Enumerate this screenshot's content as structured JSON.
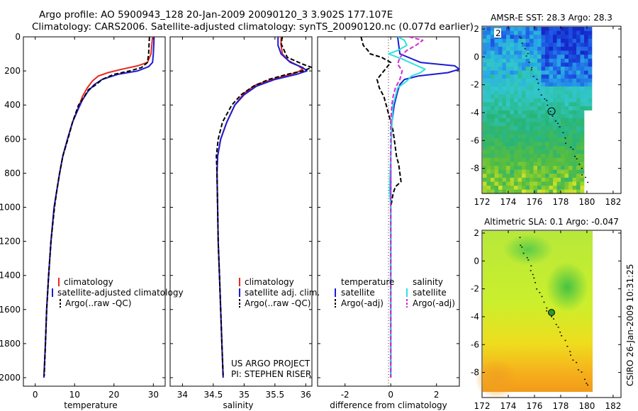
{
  "header": {
    "line1": "Argo profile: AO 5900943_128 20-Jan-2009 20090120_3 3.902S 177.107E",
    "line2": "Climatology: CARS2006. Satellite-adjusted climatology: synTS_20090120.nc (0.077d earlier)"
  },
  "footer": {
    "project": "US ARGO PROJECT",
    "pi": "PI: STEPHEN RISER",
    "stamp": "CSIRO 26-Jan-2009 10:31:25"
  },
  "colors": {
    "climatology": "#e8281e",
    "satellite": "#1b1bd6",
    "argo": "#000000",
    "sat_salinity": "#2ee0e0",
    "argo_salinity": "#d22ad2"
  },
  "chart_data": [
    {
      "type": "line",
      "name": "temperature-profile",
      "xlabel": "temperature",
      "ylabel": "",
      "xlim": [
        -3,
        33
      ],
      "ylim": [
        2050,
        0
      ],
      "xticks": [
        0,
        10,
        20,
        30
      ],
      "yticks": [
        0,
        200,
        400,
        600,
        800,
        1000,
        1200,
        1400,
        1600,
        1800,
        2000
      ],
      "legend": [
        "climatology",
        "satellite-adjusted climatology",
        "Argo(..raw -QC)"
      ],
      "series": [
        {
          "name": "climatology",
          "color": "#e8281e",
          "dash": false,
          "depth": [
            0,
            50,
            100,
            150,
            170,
            190,
            210,
            230,
            260,
            300,
            350,
            400,
            500,
            600,
            700,
            800,
            900,
            1000,
            1200,
            1400,
            1600,
            1800,
            2000
          ],
          "values": [
            29.8,
            29.6,
            29.4,
            28.5,
            26.0,
            22.0,
            18.5,
            16.0,
            14.5,
            13.2,
            12.0,
            11.2,
            9.5,
            8.2,
            7.0,
            6.2,
            5.5,
            4.8,
            4.0,
            3.4,
            2.9,
            2.6,
            2.2
          ]
        },
        {
          "name": "satellite-adjusted climatology",
          "color": "#1b1bd6",
          "dash": false,
          "depth": [
            0,
            50,
            100,
            150,
            175,
            200,
            220,
            250,
            280,
            320,
            370,
            420,
            500,
            600,
            700,
            800,
            900,
            1000,
            1200,
            1400,
            1600,
            1800,
            2000
          ],
          "values": [
            30.2,
            30.1,
            30.0,
            29.8,
            28.8,
            26.0,
            21.0,
            17.0,
            15.0,
            13.4,
            12.0,
            11.0,
            9.5,
            8.2,
            7.0,
            6.2,
            5.5,
            4.8,
            4.0,
            3.4,
            2.9,
            2.6,
            2.2
          ]
        },
        {
          "name": "Argo(..raw -QC)",
          "color": "#000000",
          "dash": true,
          "depth": [
            0,
            50,
            100,
            150,
            180,
            200,
            220,
            250,
            280,
            310,
            350,
            400,
            500,
            600,
            700,
            800,
            900,
            1000,
            1200,
            1400,
            1600,
            1800,
            1990
          ],
          "values": [
            29.0,
            28.9,
            28.8,
            28.5,
            27.0,
            24.0,
            20.0,
            17.0,
            15.5,
            13.5,
            12.5,
            11.0,
            9.5,
            8.3,
            7.0,
            6.2,
            5.5,
            4.9,
            4.0,
            3.4,
            2.9,
            2.6,
            2.3
          ]
        }
      ]
    },
    {
      "type": "line",
      "name": "salinity-profile",
      "xlabel": "salinity",
      "ylabel": "",
      "xlim": [
        33.8,
        36.1
      ],
      "ylim": [
        2050,
        0
      ],
      "xticks": [
        34,
        34.5,
        35,
        35.5,
        36
      ],
      "legend": [
        "climatology",
        "satellite adj. clim.",
        "Argo(..raw -QC)"
      ],
      "series": [
        {
          "name": "climatology",
          "color": "#e8281e",
          "dash": false,
          "depth": [
            0,
            50,
            100,
            140,
            170,
            190,
            210,
            240,
            280,
            330,
            400,
            500,
            600,
            700,
            800,
            1000,
            1200,
            1400,
            1600,
            1800,
            2000
          ],
          "values": [
            35.6,
            35.6,
            35.62,
            35.72,
            35.88,
            35.95,
            35.85,
            35.55,
            35.2,
            35.0,
            34.85,
            34.72,
            34.62,
            34.57,
            34.56,
            34.57,
            34.58,
            34.6,
            34.62,
            34.64,
            34.66
          ]
        },
        {
          "name": "satellite adj. clim.",
          "color": "#1b1bd6",
          "dash": false,
          "depth": [
            0,
            50,
            100,
            150,
            180,
            200,
            220,
            250,
            290,
            340,
            400,
            500,
            600,
            700,
            800,
            1000,
            1200,
            1400,
            1600,
            1800,
            2000
          ],
          "values": [
            35.55,
            35.55,
            35.6,
            35.75,
            35.95,
            36.02,
            35.85,
            35.5,
            35.2,
            35.0,
            34.85,
            34.72,
            34.62,
            34.57,
            34.56,
            34.57,
            34.58,
            34.6,
            34.62,
            34.64,
            34.66
          ]
        },
        {
          "name": "Argo(..raw -QC)",
          "color": "#000000",
          "dash": true,
          "depth": [
            0,
            40,
            80,
            120,
            160,
            180,
            200,
            220,
            250,
            290,
            340,
            400,
            500,
            600,
            700,
            800,
            1000,
            1200,
            1400,
            1600,
            1800,
            1990
          ],
          "values": [
            35.62,
            35.6,
            35.65,
            35.7,
            35.95,
            36.1,
            35.95,
            35.7,
            35.4,
            35.15,
            34.95,
            34.8,
            34.65,
            34.58,
            34.55,
            34.56,
            34.57,
            34.58,
            34.6,
            34.62,
            34.64,
            34.66
          ]
        }
      ]
    },
    {
      "type": "line",
      "name": "difference-profile",
      "xlabel": "difference from climatology",
      "ylabel": "",
      "xlim": [
        -3.2,
        3.0
      ],
      "ylim": [
        2050,
        0
      ],
      "xticks": [
        -2,
        0,
        2
      ],
      "legend_groups": {
        "temperature": [
          "satellite",
          "Argo(-adj)"
        ],
        "salinity": [
          "satellite",
          "Argo(-adj)"
        ]
      },
      "series": [
        {
          "name": "temperature satellite",
          "color": "#1b1bd6",
          "dash": false,
          "depth": [
            0,
            100,
            150,
            170,
            190,
            210,
            230,
            250,
            280,
            320,
            400,
            500,
            700,
            1000,
            1500,
            2000
          ],
          "values": [
            0.3,
            0.4,
            1.3,
            2.8,
            3.0,
            2.5,
            1.2,
            0.6,
            0.4,
            0.3,
            0.15,
            0.05,
            0.0,
            0.0,
            0.0,
            0.0
          ]
        },
        {
          "name": "temperature Argo(-adj)",
          "color": "#000000",
          "dash": true,
          "depth": [
            0,
            50,
            80,
            100,
            120,
            150,
            200,
            250,
            300,
            350,
            400,
            450,
            500,
            550,
            600,
            650,
            700,
            750,
            800,
            850,
            880,
            920,
            1000,
            1500,
            2000
          ],
          "values": [
            -1.3,
            -1.2,
            -1.0,
            -0.9,
            -0.4,
            0.0,
            -0.3,
            -0.6,
            -0.5,
            -0.3,
            -0.2,
            -0.1,
            0.0,
            0.1,
            0.15,
            0.2,
            0.25,
            0.35,
            0.4,
            0.45,
            0.2,
            0.1,
            0.0,
            0.0,
            0.0
          ]
        },
        {
          "name": "salinity satellite",
          "color": "#2ee0e0",
          "dash": false,
          "depth": [
            0,
            20,
            50,
            80,
            100,
            130,
            160,
            190,
            210,
            230,
            260,
            300,
            400,
            500,
            700,
            900,
            1000,
            1500,
            2000
          ],
          "values": [
            0.3,
            0.6,
            0.7,
            0.3,
            -0.1,
            0.5,
            1.0,
            1.5,
            1.3,
            0.9,
            0.7,
            0.3,
            0.1,
            0.05,
            0.0,
            -0.05,
            0.0,
            0.0,
            0.0
          ]
        },
        {
          "name": "salinity Argo(-adj)",
          "color": "#d22ad2",
          "dash": true,
          "depth": [
            0,
            20,
            50,
            80,
            120,
            160,
            200,
            250,
            300,
            350,
            400,
            500,
            1000,
            2000
          ],
          "values": [
            0.8,
            1.4,
            1.1,
            0.7,
            0.4,
            0.3,
            0.5,
            0.4,
            0.2,
            0.1,
            0.05,
            0.0,
            0.0,
            0.0
          ]
        }
      ]
    },
    {
      "type": "heatmap",
      "name": "sst-map",
      "title": "AMSR-E SST: 28.3 Argo: 28.3",
      "xlim": [
        172,
        182.6
      ],
      "ylim": [
        -9.8,
        2.2
      ],
      "xticks": [
        172,
        174,
        176,
        178,
        180,
        182
      ],
      "yticks": [
        -8,
        -6,
        -4,
        -2,
        0,
        2
      ],
      "marker": {
        "lon": 177.107,
        "lat": -3.902
      },
      "label": "2"
    },
    {
      "type": "heatmap",
      "name": "sla-map",
      "title": "Altimetric SLA: 0.1 Argo: -0.047",
      "xlim": [
        172,
        182.6
      ],
      "ylim": [
        -9.8,
        2.2
      ],
      "xticks": [
        172,
        174,
        176,
        178,
        180,
        182
      ],
      "yticks": [
        -8,
        -6,
        -4,
        -2,
        0,
        2
      ],
      "marker": {
        "lon": 177.107,
        "lat": -3.902
      }
    }
  ]
}
